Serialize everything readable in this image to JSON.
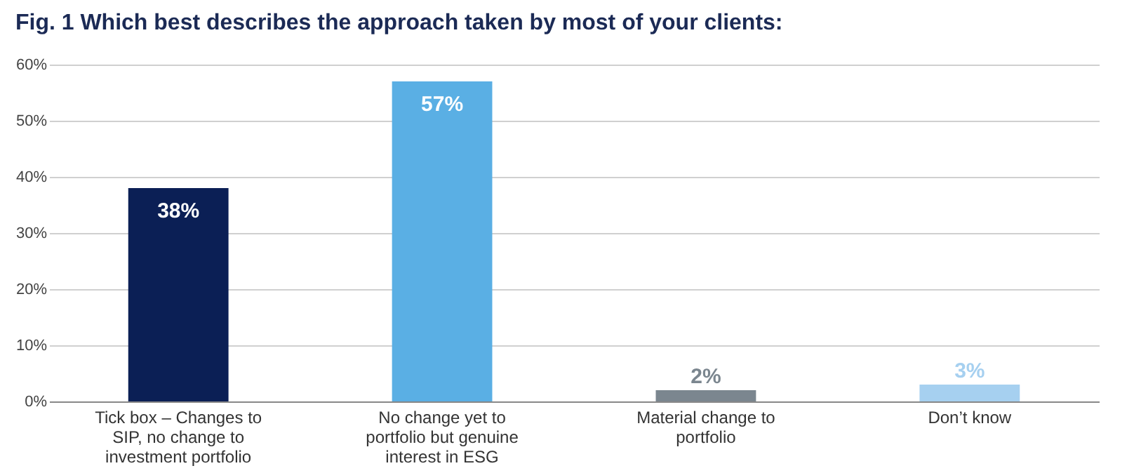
{
  "chart_data": {
    "type": "bar",
    "title": "Fig. 1 Which best describes the approach taken by most of your clients:",
    "categories": [
      "Tick box – Changes to SIP, no change to investment portfolio",
      "No change yet to portfolio but genuine interest in ESG",
      "Material change to portfolio",
      "Don’t know"
    ],
    "values": [
      38,
      57,
      2,
      3
    ],
    "colors": [
      "#0b1f55",
      "#5aafe4",
      "#7b868f",
      "#a6d0f0"
    ],
    "ylim": [
      0,
      60
    ],
    "yticks": [
      {
        "value": 0,
        "label": "0%"
      },
      {
        "value": 10,
        "label": "10%"
      },
      {
        "value": 20,
        "label": "20%"
      },
      {
        "value": 30,
        "label": "30%"
      },
      {
        "value": 40,
        "label": "40%"
      },
      {
        "value": 50,
        "label": "50%"
      },
      {
        "value": 60,
        "label": "60%"
      }
    ],
    "value_labels": [
      "38%",
      "57%",
      "2%",
      "3%"
    ],
    "grid": "y"
  }
}
